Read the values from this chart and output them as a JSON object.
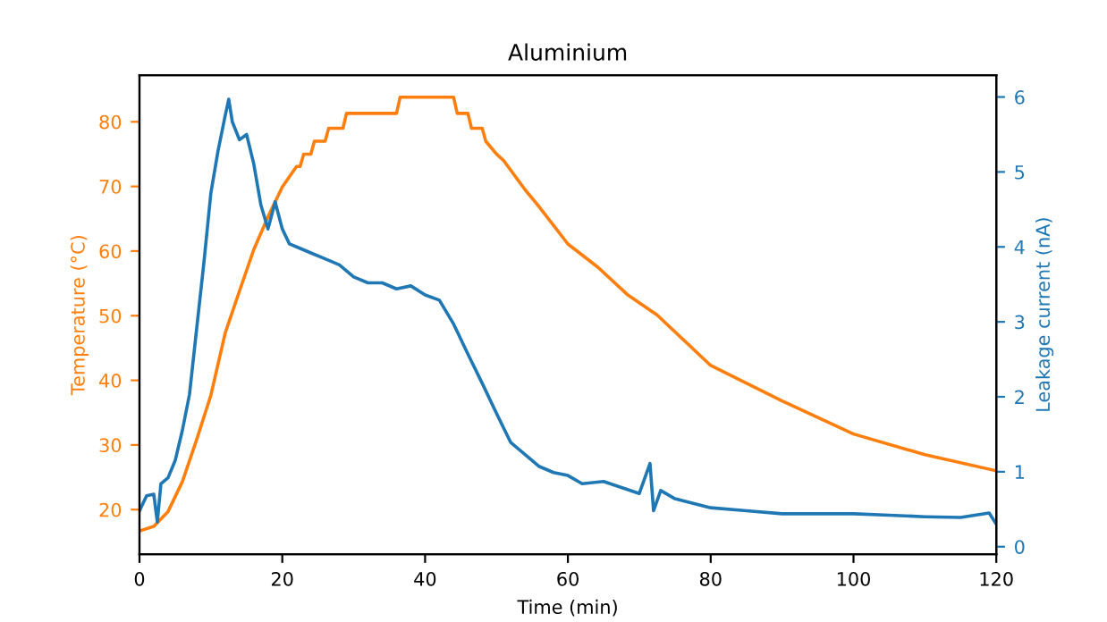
{
  "chart_data": {
    "type": "line",
    "title": "Aluminium",
    "xlabel": "Time (min)",
    "ylabel": "Temperature (°C)",
    "y2label": "Leakage current (nA)",
    "xlim": [
      0,
      120
    ],
    "xticks": [
      0,
      20,
      40,
      60,
      80,
      100,
      120
    ],
    "ylim": [
      13.1,
      87.2
    ],
    "yticks": [
      20,
      30,
      40,
      50,
      60,
      70,
      80
    ],
    "y2lim": [
      -0.1,
      6.29
    ],
    "y2ticks": [
      0,
      1,
      2,
      3,
      4,
      5,
      6
    ],
    "grid": false,
    "legend": false,
    "marker": "none",
    "line_style": "solid",
    "series": [
      {
        "color": "#ff7f0e",
        "x": [
          0,
          2,
          4,
          6,
          8,
          10,
          12,
          14,
          16,
          18,
          20,
          21,
          22,
          22.5,
          23,
          24,
          24.5,
          25,
          26,
          26.5,
          28.5,
          29,
          36,
          36.5,
          44,
          44.5,
          46,
          46.5,
          48,
          48.5,
          50,
          51,
          52,
          53,
          54,
          55.8,
          60,
          64.2,
          68.3,
          72.5,
          80,
          90,
          100,
          110,
          120
        ],
        "values": [
          16.7,
          17.4,
          19.7,
          24.3,
          30.8,
          37.7,
          47.3,
          53.8,
          60.2,
          65.3,
          69.9,
          71.5,
          73.1,
          73.1,
          75,
          75,
          77,
          77,
          77,
          79,
          79,
          81.3,
          81.3,
          83.8,
          83.8,
          81.3,
          81.3,
          79,
          79,
          77,
          75,
          74,
          72.5,
          71,
          69.5,
          67.1,
          61.1,
          57.5,
          53.3,
          50.1,
          42.3,
          36.8,
          31.7,
          28.5,
          26.0
        ]
      },
      {
        "color": "#1f77b4",
        "axis": "y2",
        "x": [
          0,
          1,
          2,
          2.5,
          3,
          4,
          5,
          6,
          7,
          8,
          9,
          10,
          11,
          12,
          12.5,
          13,
          14,
          15,
          16,
          17,
          18,
          19,
          20,
          21,
          22,
          24,
          26,
          28,
          30,
          32,
          34,
          36,
          38,
          40,
          42,
          44,
          46,
          48,
          50,
          52,
          54,
          56,
          58,
          60,
          62,
          65,
          70,
          71.5,
          72,
          73,
          75,
          80,
          85,
          90,
          95,
          100,
          105,
          110,
          115,
          119,
          120
        ],
        "values": [
          0.48,
          0.68,
          0.7,
          0.33,
          0.84,
          0.92,
          1.15,
          1.55,
          2.03,
          2.9,
          3.77,
          4.72,
          5.28,
          5.75,
          5.97,
          5.67,
          5.43,
          5.5,
          5.11,
          4.56,
          4.24,
          4.6,
          4.24,
          4.04,
          4.0,
          3.92,
          3.84,
          3.76,
          3.6,
          3.52,
          3.52,
          3.44,
          3.48,
          3.36,
          3.29,
          2.97,
          2.57,
          2.18,
          1.78,
          1.39,
          1.23,
          1.07,
          0.99,
          0.95,
          0.84,
          0.87,
          0.71,
          1.11,
          0.48,
          0.75,
          0.64,
          0.52,
          0.48,
          0.44,
          0.44,
          0.44,
          0.42,
          0.4,
          0.39,
          0.45,
          0.3
        ]
      }
    ]
  }
}
